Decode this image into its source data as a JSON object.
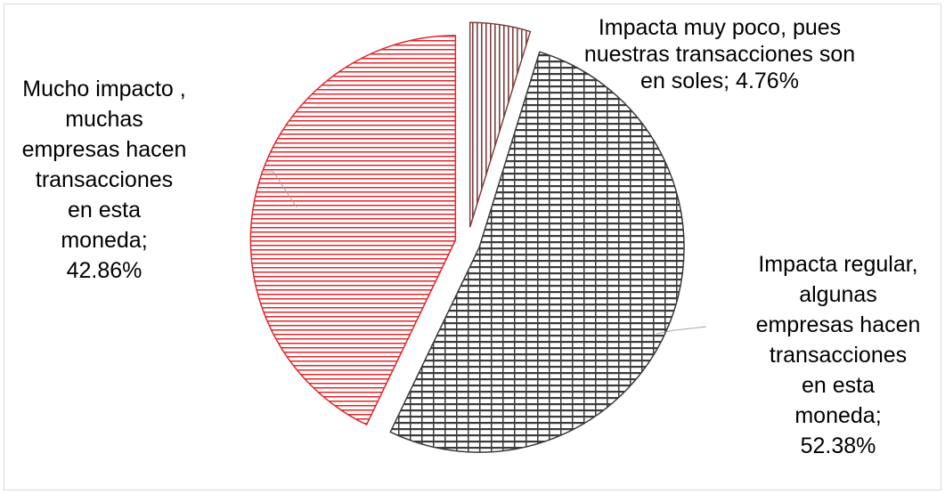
{
  "chart_data": {
    "type": "pie",
    "title": "",
    "exploded": true,
    "legend": "none",
    "slices": [
      {
        "label_lines": [
          "Impacta muy poco, pues",
          "nuestras transacciones son",
          "en soles; 4.76%"
        ],
        "category": "Impacta muy poco, pues nuestras transacciones son en soles",
        "value": 4.76,
        "color": "#7f3f3f",
        "pattern": "vertical-hatch"
      },
      {
        "label_lines": [
          "Impacta regular,",
          "algunas",
          "empresas hacen",
          "transacciones",
          "en esta",
          "moneda;",
          "52.38%"
        ],
        "category": "Impacta regular, algunas empresas hacen transacciones en esta moneda",
        "value": 52.38,
        "color": "#3a3a3a",
        "pattern": "brick-grid"
      },
      {
        "label_lines": [
          "Mucho impacto ,",
          "muchas",
          "empresas hacen",
          "transacciones",
          "en esta",
          "moneda;",
          "42.86%"
        ],
        "category": "Mucho impacto, muchas empresas hacen transacciones en esta moneda",
        "value": 42.86,
        "color": "#e0282c",
        "pattern": "horizontal-hatch"
      }
    ]
  }
}
